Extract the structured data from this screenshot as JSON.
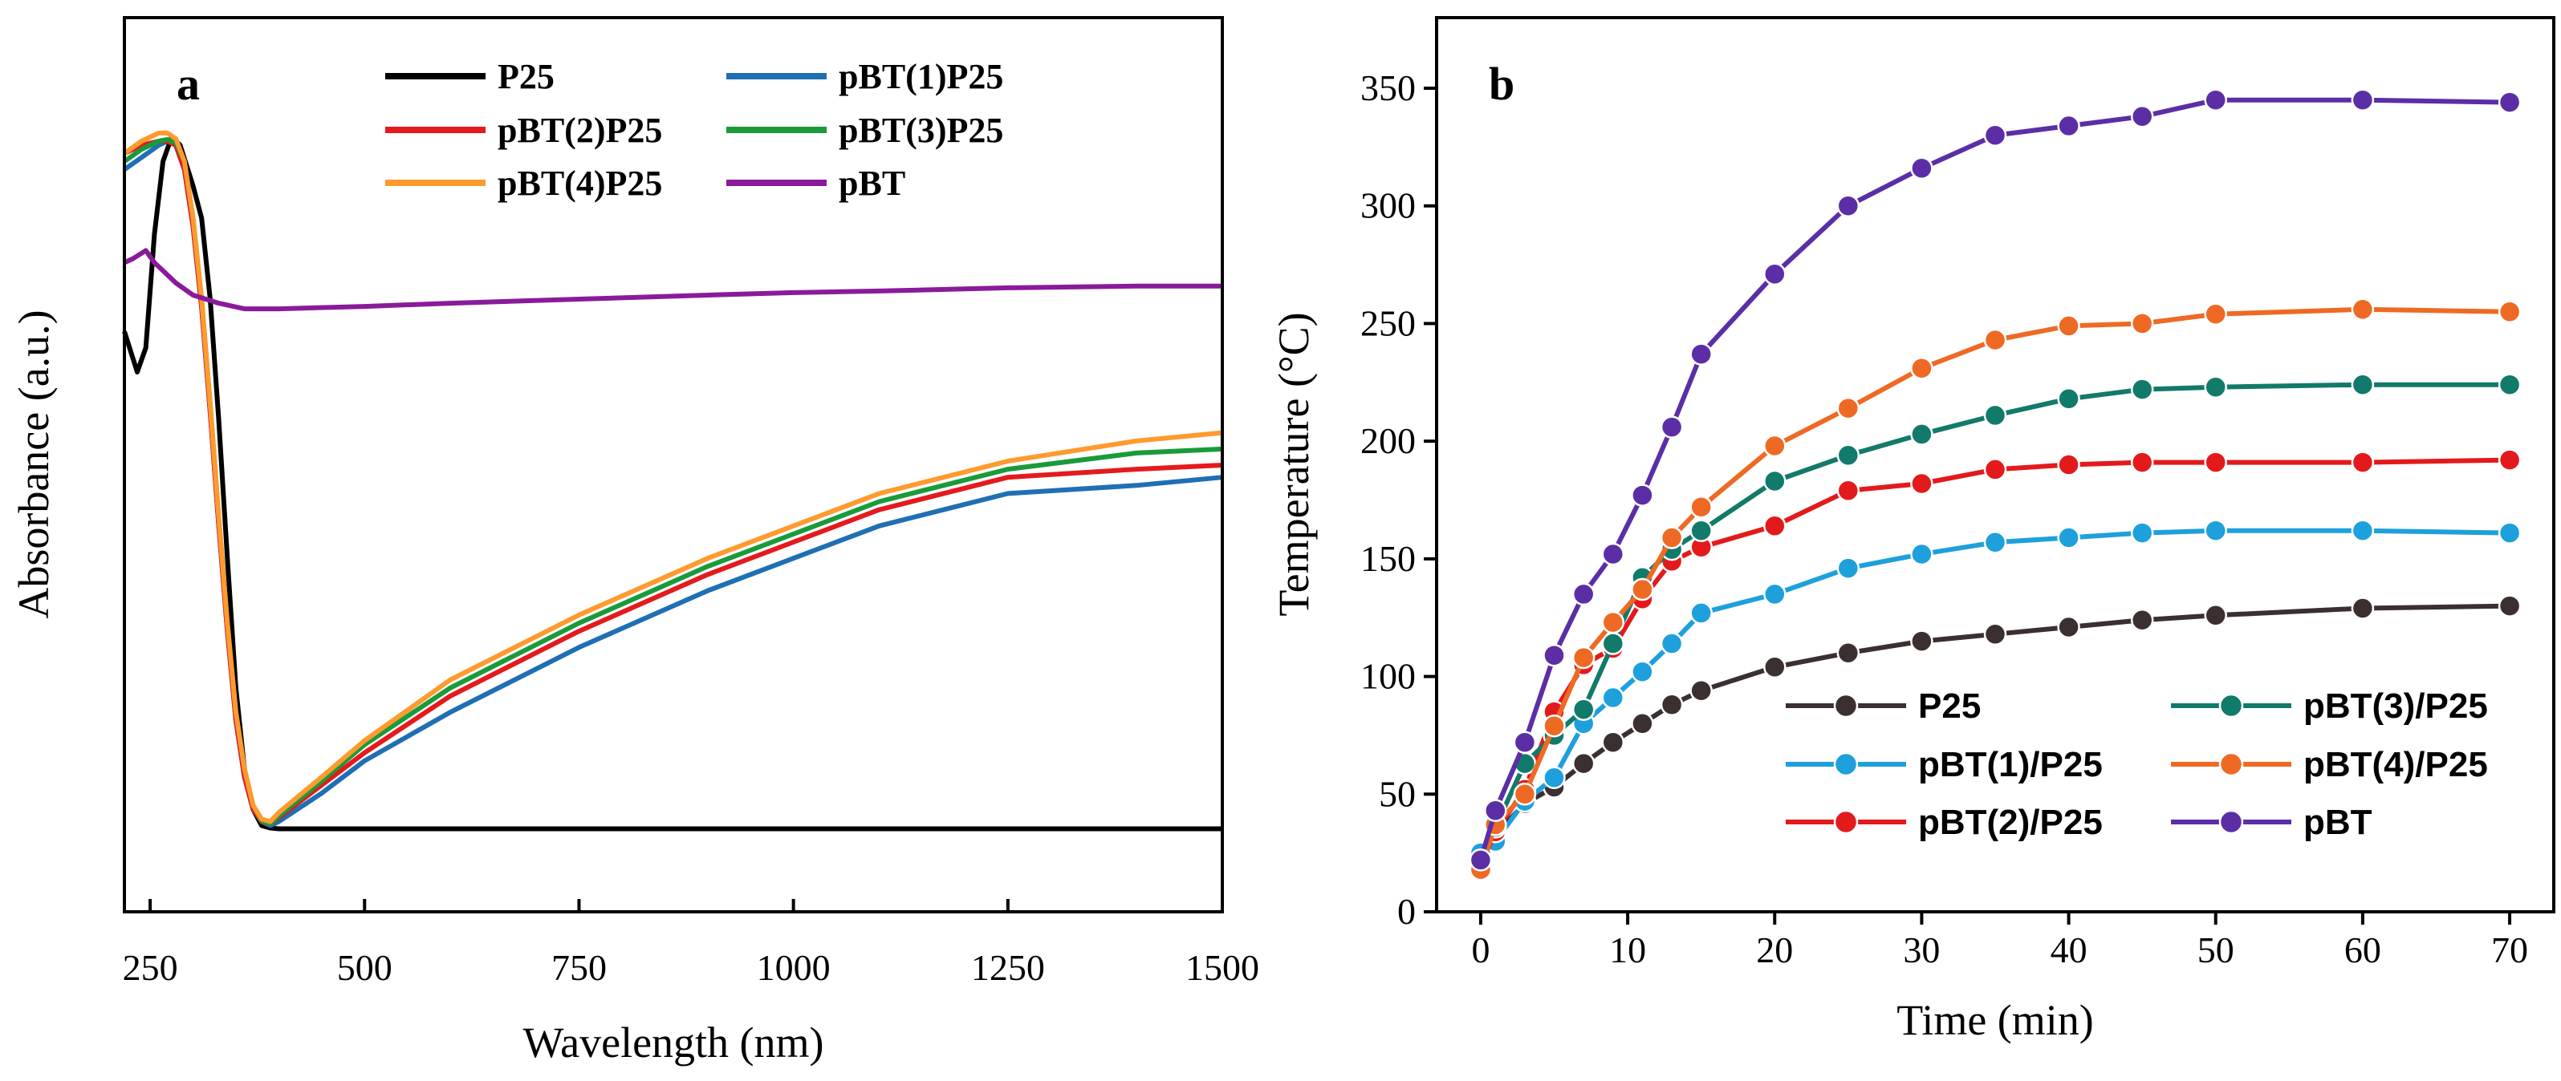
{
  "chart_data": [
    {
      "type": "line",
      "panel": "a",
      "xlabel": "Wavelength (nm)",
      "ylabel": "Absorbance (a.u.)",
      "xlim": [
        220,
        1500
      ],
      "ylim": [
        0,
        1.0
      ],
      "xticks": [
        250,
        500,
        750,
        1000,
        1250,
        1500
      ],
      "yticks_shown": false,
      "legend": "top",
      "series": [
        {
          "name": "P25",
          "color": "#000000",
          "x": [
            220,
            235,
            245,
            255,
            265,
            275,
            285,
            300,
            310,
            320,
            330,
            340,
            350,
            360,
            370,
            380,
            390,
            400,
            420,
            500,
            750,
            1000,
            1250,
            1500
          ],
          "y": [
            0.66,
            0.61,
            0.64,
            0.78,
            0.87,
            0.9,
            0.89,
            0.84,
            0.8,
            0.7,
            0.55,
            0.38,
            0.22,
            0.12,
            0.07,
            0.05,
            0.047,
            0.046,
            0.046,
            0.046,
            0.046,
            0.046,
            0.046,
            0.046
          ]
        },
        {
          "name": "pBT(1)P25",
          "color": "#1f6fb4",
          "x": [
            220,
            240,
            260,
            270,
            280,
            290,
            300,
            310,
            320,
            330,
            340,
            350,
            360,
            370,
            380,
            390,
            400,
            450,
            500,
            600,
            750,
            900,
            1000,
            1100,
            1250,
            1400,
            1500
          ],
          "y": [
            0.86,
            0.875,
            0.89,
            0.895,
            0.89,
            0.86,
            0.79,
            0.69,
            0.56,
            0.42,
            0.29,
            0.18,
            0.11,
            0.07,
            0.055,
            0.05,
            0.055,
            0.09,
            0.13,
            0.19,
            0.27,
            0.34,
            0.38,
            0.42,
            0.46,
            0.47,
            0.48
          ]
        },
        {
          "name": "pBT(2)P25",
          "color": "#e41a1c",
          "x": [
            220,
            240,
            260,
            270,
            280,
            290,
            300,
            310,
            320,
            330,
            340,
            350,
            360,
            370,
            380,
            390,
            400,
            450,
            500,
            600,
            750,
            900,
            1000,
            1100,
            1250,
            1400,
            1500
          ],
          "y": [
            0.88,
            0.89,
            0.895,
            0.895,
            0.89,
            0.86,
            0.79,
            0.69,
            0.56,
            0.42,
            0.29,
            0.18,
            0.11,
            0.07,
            0.055,
            0.052,
            0.06,
            0.1,
            0.14,
            0.21,
            0.29,
            0.36,
            0.4,
            0.44,
            0.48,
            0.49,
            0.495
          ]
        },
        {
          "name": "pBT(3)P25",
          "color": "#1a9a3a",
          "x": [
            220,
            240,
            260,
            270,
            280,
            290,
            300,
            310,
            320,
            330,
            340,
            350,
            360,
            370,
            380,
            390,
            400,
            450,
            500,
            600,
            750,
            900,
            1000,
            1100,
            1250,
            1400,
            1500
          ],
          "y": [
            0.87,
            0.885,
            0.895,
            0.897,
            0.893,
            0.87,
            0.8,
            0.7,
            0.57,
            0.43,
            0.3,
            0.19,
            0.12,
            0.075,
            0.056,
            0.052,
            0.062,
            0.105,
            0.15,
            0.22,
            0.3,
            0.37,
            0.41,
            0.45,
            0.49,
            0.51,
            0.515
          ]
        },
        {
          "name": "pBT(4)P25",
          "color": "#ff9a2e",
          "x": [
            220,
            240,
            260,
            270,
            280,
            290,
            300,
            310,
            320,
            330,
            340,
            350,
            360,
            370,
            380,
            390,
            400,
            450,
            500,
            600,
            750,
            900,
            1000,
            1100,
            1250,
            1400,
            1500
          ],
          "y": [
            0.88,
            0.895,
            0.905,
            0.905,
            0.898,
            0.87,
            0.8,
            0.7,
            0.57,
            0.43,
            0.3,
            0.19,
            0.12,
            0.075,
            0.058,
            0.055,
            0.066,
            0.11,
            0.155,
            0.23,
            0.31,
            0.38,
            0.42,
            0.46,
            0.5,
            0.525,
            0.535
          ]
        },
        {
          "name": "pBT",
          "color": "#8a1a9b",
          "x": [
            220,
            230,
            245,
            255,
            265,
            280,
            300,
            330,
            360,
            400,
            500,
            600,
            750,
            900,
            1000,
            1100,
            1250,
            1400,
            1500
          ],
          "y": [
            0.745,
            0.75,
            0.76,
            0.745,
            0.735,
            0.72,
            0.705,
            0.695,
            0.688,
            0.688,
            0.691,
            0.695,
            0.7,
            0.705,
            0.708,
            0.71,
            0.714,
            0.716,
            0.716
          ]
        }
      ]
    },
    {
      "type": "line",
      "panel": "b",
      "xlabel": "Time (min)",
      "ylabel": "Temperature (°C)",
      "xlim": [
        -3,
        73
      ],
      "ylim": [
        0,
        380
      ],
      "xticks": [
        0,
        10,
        20,
        30,
        40,
        50,
        60,
        70
      ],
      "yticks": [
        0,
        50,
        100,
        150,
        200,
        250,
        300,
        350
      ],
      "legend": "bottom-right",
      "series": [
        {
          "name": "P25",
          "color": "#3b2f30",
          "x": [
            0,
            1,
            3,
            5,
            7,
            9,
            11,
            13,
            15,
            20,
            25,
            30,
            35,
            40,
            45,
            50,
            60,
            70
          ],
          "y": [
            25,
            33,
            46,
            53,
            63,
            72,
            80,
            88,
            94,
            104,
            110,
            115,
            118,
            121,
            124,
            126,
            129,
            130
          ]
        },
        {
          "name": "pBT(1)/P25",
          "color": "#1ea0dc",
          "x": [
            0,
            1,
            3,
            5,
            7,
            9,
            11,
            13,
            15,
            20,
            25,
            30,
            35,
            40,
            45,
            50,
            60,
            70
          ],
          "y": [
            25,
            30,
            47,
            57,
            80,
            91,
            102,
            114,
            127,
            135,
            146,
            152,
            157,
            159,
            161,
            162,
            162,
            161
          ]
        },
        {
          "name": "pBT(2)/P25",
          "color": "#e31a1c",
          "x": [
            0,
            1,
            3,
            5,
            7,
            9,
            11,
            13,
            15,
            20,
            25,
            30,
            35,
            40,
            45,
            50,
            60,
            70
          ],
          "y": [
            20,
            34,
            52,
            85,
            105,
            112,
            133,
            149,
            155,
            164,
            179,
            182,
            188,
            190,
            191,
            191,
            191,
            192
          ]
        },
        {
          "name": "pBT(3)/P25",
          "color": "#127a6a",
          "x": [
            0,
            1,
            3,
            5,
            7,
            9,
            11,
            13,
            15,
            20,
            25,
            30,
            35,
            40,
            45,
            50,
            60,
            70
          ],
          "y": [
            22,
            36,
            63,
            75,
            86,
            114,
            142,
            154,
            162,
            183,
            194,
            203,
            211,
            218,
            222,
            223,
            224,
            224
          ]
        },
        {
          "name": "pBT(4)/P25",
          "color": "#ee6a24",
          "x": [
            0,
            1,
            3,
            5,
            7,
            9,
            11,
            13,
            15,
            20,
            25,
            30,
            35,
            40,
            45,
            50,
            60,
            70
          ],
          "y": [
            18,
            37,
            50,
            79,
            108,
            123,
            137,
            159,
            172,
            198,
            214,
            231,
            243,
            249,
            250,
            254,
            256,
            255
          ]
        },
        {
          "name": "pBT",
          "color": "#5b2ea6",
          "x": [
            0,
            1,
            3,
            5,
            7,
            9,
            11,
            13,
            15,
            20,
            25,
            30,
            35,
            40,
            45,
            50,
            60,
            70
          ],
          "y": [
            22,
            43,
            72,
            109,
            135,
            152,
            177,
            206,
            237,
            271,
            300,
            316,
            330,
            334,
            338,
            345,
            345,
            344
          ]
        }
      ]
    }
  ]
}
